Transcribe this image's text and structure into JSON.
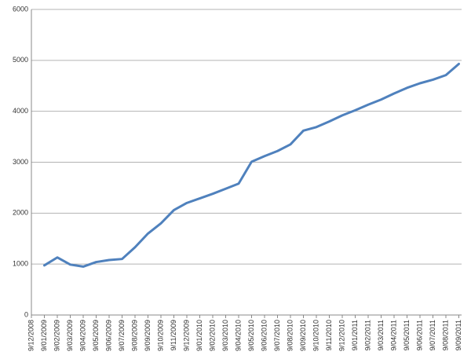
{
  "chart_data": {
    "type": "line",
    "categories": [
      "9/12/2008",
      "9/01/2009",
      "9/02/2009",
      "9/03/2009",
      "9/04/2009",
      "9/05/2009",
      "9/06/2009",
      "9/07/2009",
      "9/08/2009",
      "9/09/2009",
      "9/10/2009",
      "9/11/2009",
      "9/12/2009",
      "9/01/2010",
      "9/02/2010",
      "9/03/2010",
      "9/04/2010",
      "9/05/2010",
      "9/06/2010",
      "9/07/2010",
      "9/08/2010",
      "9/09/2010",
      "9/10/2010",
      "9/11/2010",
      "9/12/2010",
      "9/01/2011",
      "9/02/2011",
      "9/03/2011",
      "9/04/2011",
      "9/05/2011",
      "9/06/2011",
      "9/07/2011",
      "9/08/2011",
      "9/09/2011"
    ],
    "series": [
      {
        "color": "#4f81bd",
        "values": [
          null,
          975,
          1130,
          990,
          950,
          1040,
          1080,
          1100,
          1330,
          1600,
          1800,
          2060,
          2200,
          2290,
          2380,
          2480,
          2580,
          3010,
          3120,
          3220,
          3350,
          3620,
          3690,
          3800,
          3920,
          4020,
          4130,
          4230,
          4350,
          4460,
          4550,
          4620,
          4710,
          4930
        ]
      }
    ],
    "ylim": [
      0,
      6000
    ],
    "yticks": [
      0,
      1000,
      2000,
      3000,
      4000,
      5000,
      6000
    ],
    "grid": true
  }
}
